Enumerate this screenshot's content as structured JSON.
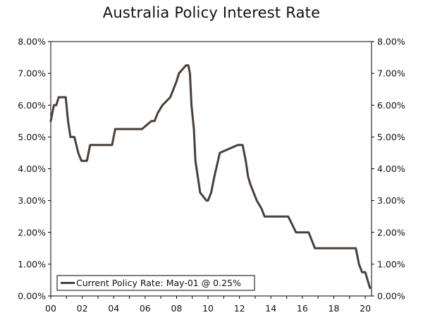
{
  "chart_data": {
    "type": "line",
    "title": "Australia Policy Interest Rate",
    "xlabel": "",
    "ylabel": "",
    "x_ticks": [
      "00",
      "02",
      "04",
      "06",
      "08",
      "10",
      "12",
      "14",
      "16",
      "18",
      "20"
    ],
    "y_ticks": [
      "0.00%",
      "1.00%",
      "2.00%",
      "3.00%",
      "4.00%",
      "5.00%",
      "6.00%",
      "7.00%",
      "8.00%"
    ],
    "xlim": [
      2000,
      2020.4
    ],
    "ylim": [
      0,
      8
    ],
    "grid": false,
    "legend_position": "bottom-left",
    "series": [
      {
        "name": "Current Policy Rate: May-01 @ 0.25%",
        "color": "#4a3f38",
        "x": [
          2000.0,
          2000.1,
          2000.2,
          2000.35,
          2000.5,
          2000.65,
          2000.95,
          2001.1,
          2001.25,
          2001.5,
          2001.75,
          2001.95,
          2002.3,
          2002.5,
          2003.9,
          2004.1,
          2005.8,
          2006.4,
          2006.6,
          2006.8,
          2007.1,
          2007.6,
          2007.8,
          2008.0,
          2008.15,
          2008.6,
          2008.75,
          2008.85,
          2008.95,
          2009.1,
          2009.2,
          2009.5,
          2009.9,
          2010.0,
          2010.2,
          2010.4,
          2010.75,
          2011.9,
          2012.2,
          2012.4,
          2012.55,
          2012.7,
          2013.1,
          2013.4,
          2013.6,
          2015.1,
          2015.35,
          2015.6,
          2016.4,
          2016.6,
          2016.8,
          2019.4,
          2019.6,
          2019.8,
          2020.0,
          2020.15,
          2020.3
        ],
        "y": [
          5.5,
          5.75,
          6.0,
          6.0,
          6.25,
          6.25,
          6.25,
          5.5,
          5.0,
          5.0,
          4.5,
          4.25,
          4.25,
          4.75,
          4.75,
          5.25,
          5.25,
          5.5,
          5.5,
          5.75,
          6.0,
          6.25,
          6.5,
          6.75,
          7.0,
          7.25,
          7.25,
          7.0,
          6.0,
          5.25,
          4.25,
          3.25,
          3.0,
          3.0,
          3.25,
          3.75,
          4.5,
          4.75,
          4.75,
          4.25,
          3.75,
          3.5,
          3.0,
          2.75,
          2.5,
          2.5,
          2.25,
          2.0,
          2.0,
          1.75,
          1.5,
          1.5,
          1.0,
          0.75,
          0.75,
          0.5,
          0.25
        ]
      }
    ]
  }
}
